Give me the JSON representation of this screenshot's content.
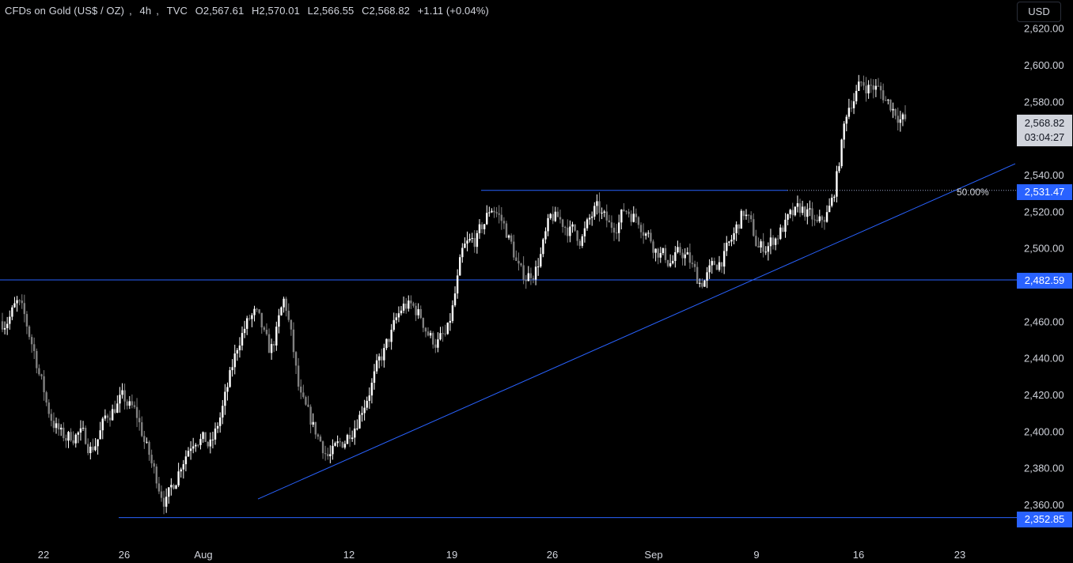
{
  "header": {
    "symbol": "CFDs on Gold (US$ / OZ)",
    "interval": "4h",
    "source": "TVC",
    "open": "O2,567.61",
    "high": "H2,570.01",
    "low": "L2,566.55",
    "close": "C2,568.82",
    "change": "+1.11 (+0.04%)"
  },
  "currency_button": "USD",
  "price_axis": {
    "ticks": [
      "2,620.00",
      "2,600.00",
      "2,580.00",
      "2,540.00",
      "2,520.00",
      "2,500.00",
      "2,460.00",
      "2,440.00",
      "2,420.00",
      "2,400.00",
      "2,380.00",
      "2,360.00"
    ],
    "last_price": "2,568.82",
    "countdown": "03:04:27",
    "levels": [
      "2,531.47",
      "2,482.59",
      "2,352.85"
    ]
  },
  "time_axis": {
    "ticks": [
      "22",
      "26",
      "Aug",
      "12",
      "19",
      "26",
      "Sep",
      "9",
      "16",
      "23"
    ]
  },
  "fib_label": "50.00%",
  "colors": {
    "background": "#000000",
    "up": "#ffffff",
    "down": "#808080",
    "drawing": "#2962ff",
    "text": "#d1d4dc"
  },
  "chart_data": {
    "type": "candlestick",
    "ylim": [
      2345,
      2625
    ],
    "x": [
      "Jul 22",
      "Jul 26",
      "Aug 5",
      "Aug 12",
      "Aug 19",
      "Aug 26",
      "Sep 2",
      "Sep 9",
      "Sep 16",
      "Sep 23"
    ],
    "close_path": [
      2460,
      2470,
      2445,
      2410,
      2395,
      2400,
      2390,
      2410,
      2418,
      2408,
      2380,
      2360,
      2385,
      2400,
      2390,
      2420,
      2455,
      2465,
      2440,
      2475,
      2415,
      2400,
      2385,
      2395,
      2410,
      2430,
      2450,
      2470,
      2465,
      2448,
      2452,
      2500,
      2505,
      2525,
      2508,
      2482,
      2490,
      2518,
      2512,
      2505,
      2522,
      2510,
      2522,
      2515,
      2500,
      2492,
      2498,
      2480,
      2490,
      2500,
      2522,
      2498,
      2505,
      2515,
      2522,
      2510,
      2525,
      2580,
      2590,
      2587,
      2577,
      2568
    ],
    "horizontal_levels": [
      2531.47,
      2482.59,
      2352.85
    ],
    "trendline": {
      "from": [
        "Aug 5",
        2363
      ],
      "to": [
        "Sep 25",
        2546
      ]
    },
    "fib_level": {
      "label": "50.00%",
      "price": 2531.47
    }
  }
}
